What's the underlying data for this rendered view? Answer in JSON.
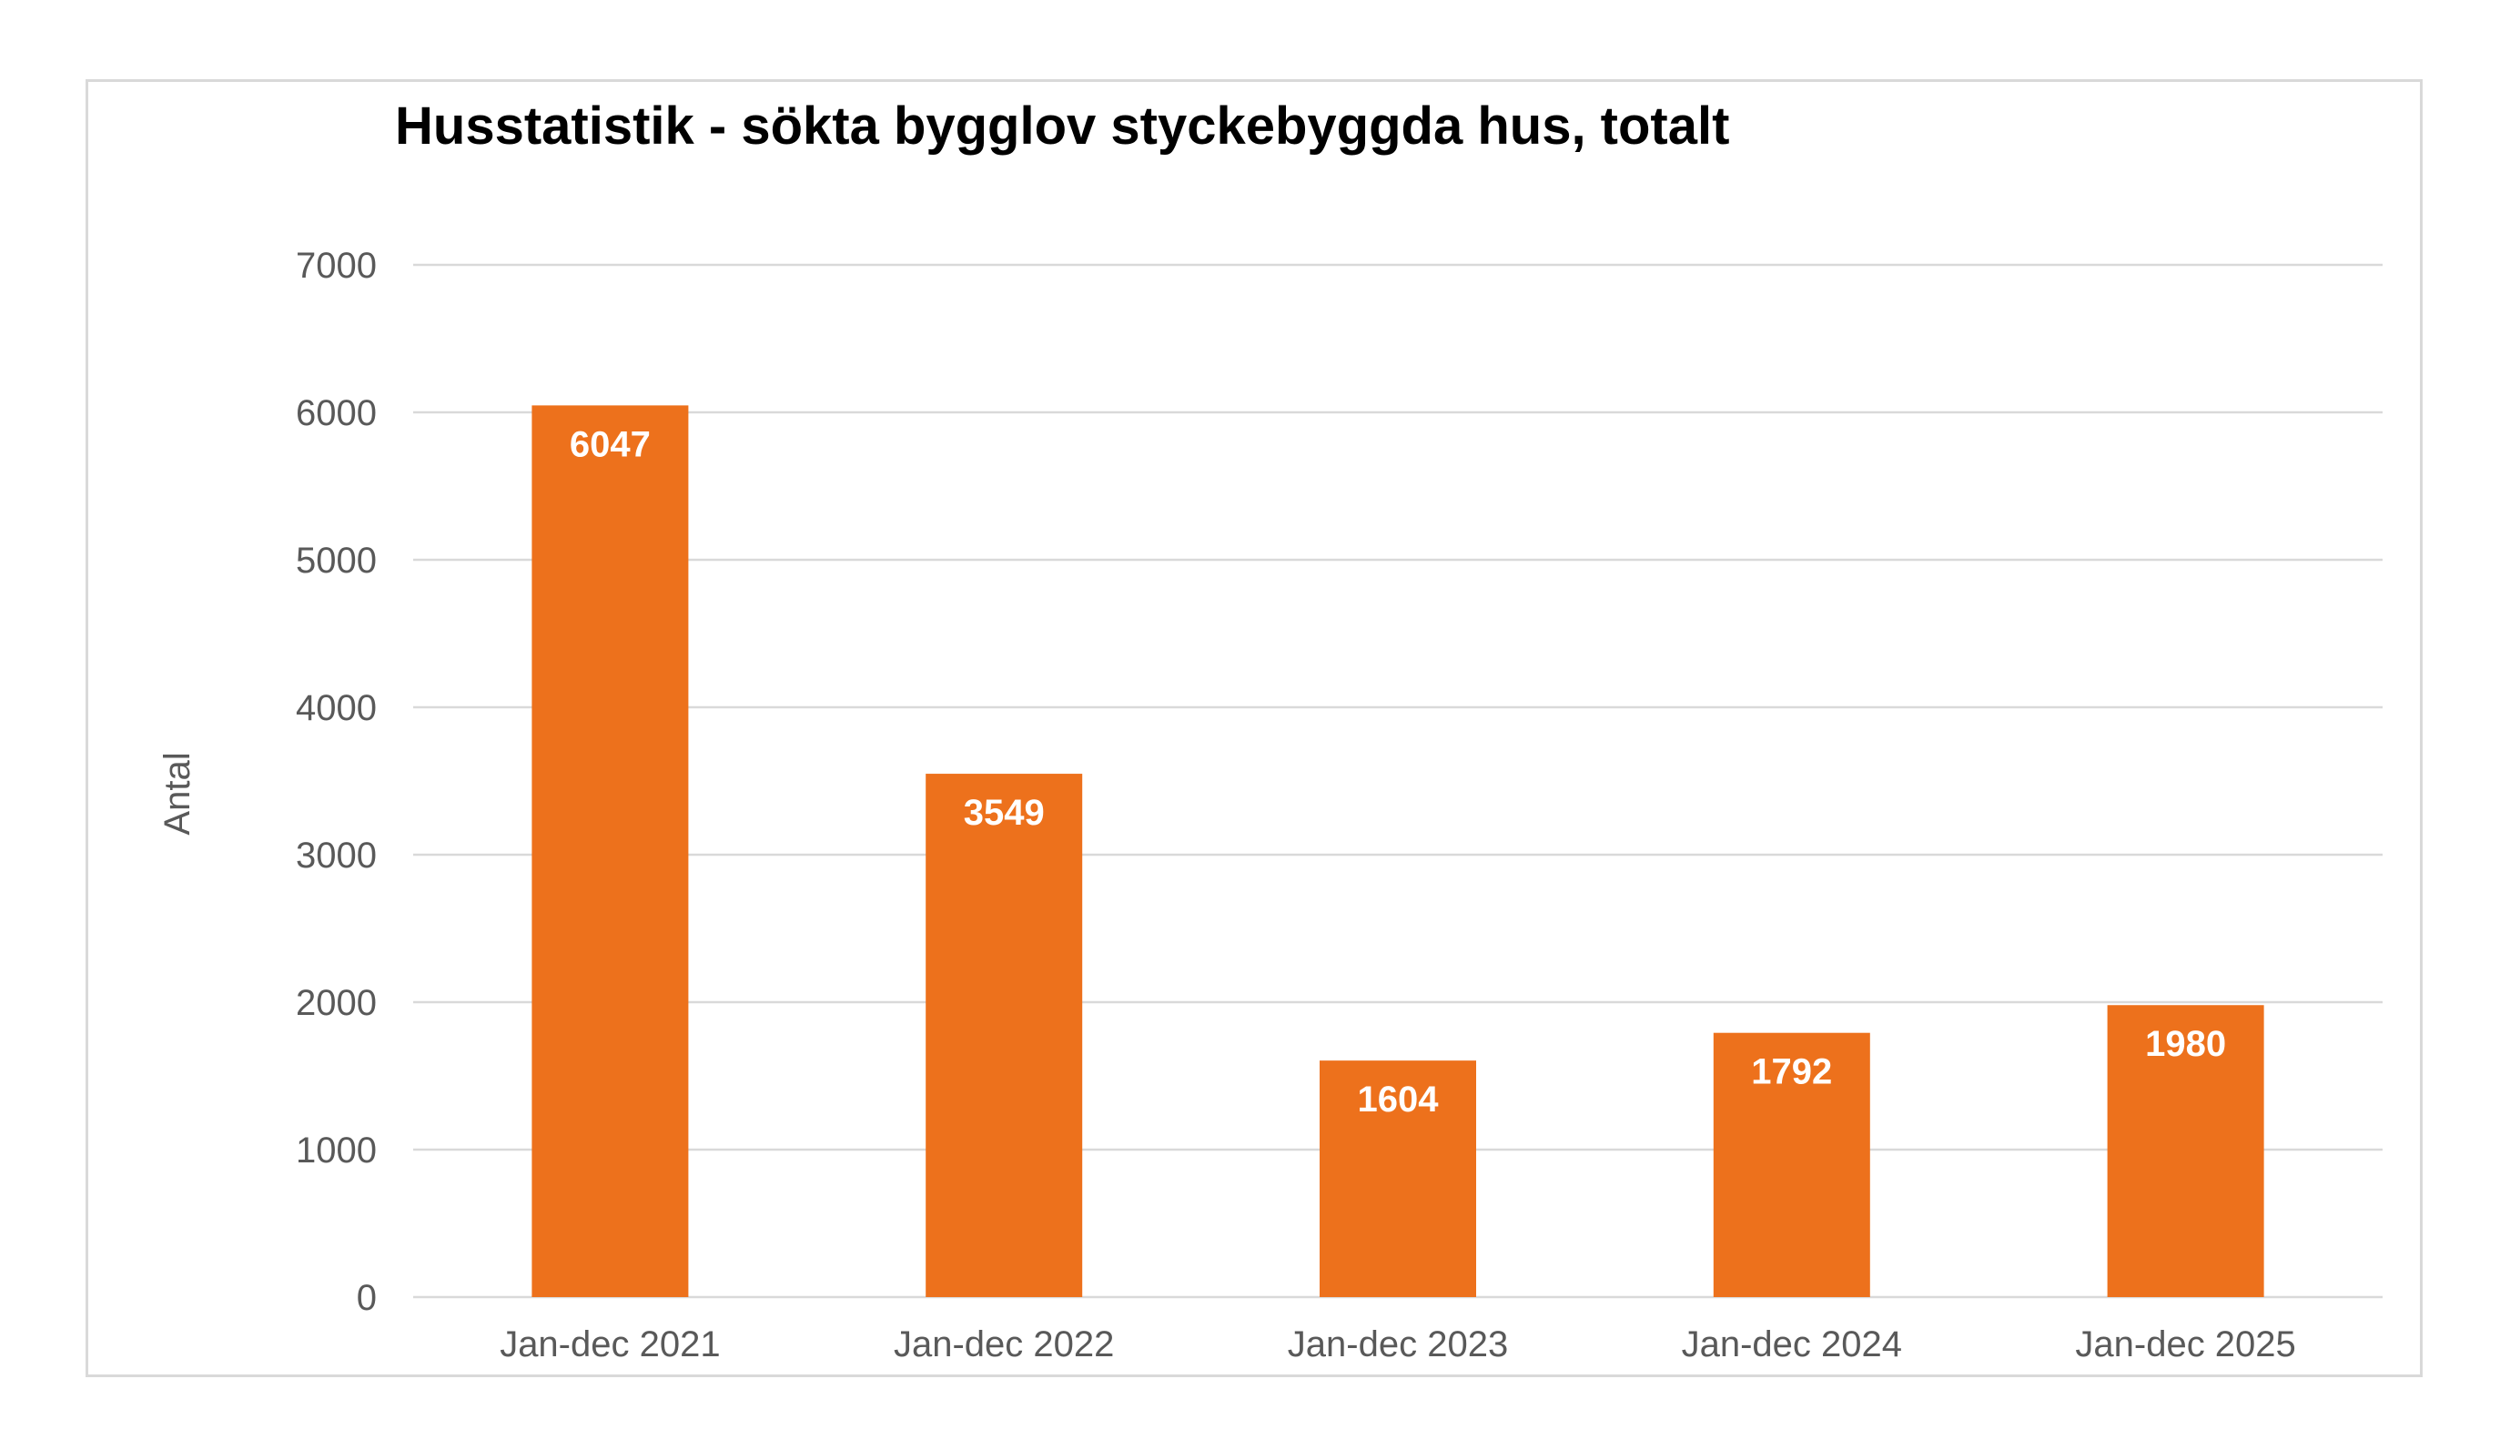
{
  "chart_data": {
    "type": "bar",
    "title": "Husstatistik - sökta bygglov styckebyggda hus, totalt",
    "xlabel": "",
    "ylabel": "Antal",
    "categories": [
      "Jan-dec 2021",
      "Jan-dec 2022",
      "Jan-dec 2023",
      "Jan-dec 2024",
      "Jan-dec 2025"
    ],
    "values": [
      6047,
      3549,
      1604,
      1792,
      1980
    ],
    "data_labels": [
      "6047",
      "3549",
      "1604",
      "1792",
      "1980"
    ],
    "ylim": [
      0,
      7000
    ],
    "yticks": [
      0,
      1000,
      2000,
      3000,
      4000,
      5000,
      6000,
      7000
    ],
    "ytick_labels": [
      "0",
      "1000",
      "2000",
      "3000",
      "4000",
      "5000",
      "6000",
      "7000"
    ],
    "grid": true,
    "legend": "none",
    "colors": {
      "bar": "#ED711C",
      "grid": "#d9d9d9",
      "tick_text": "#595959",
      "data_label": "#ffffff",
      "title": "#000000"
    }
  }
}
